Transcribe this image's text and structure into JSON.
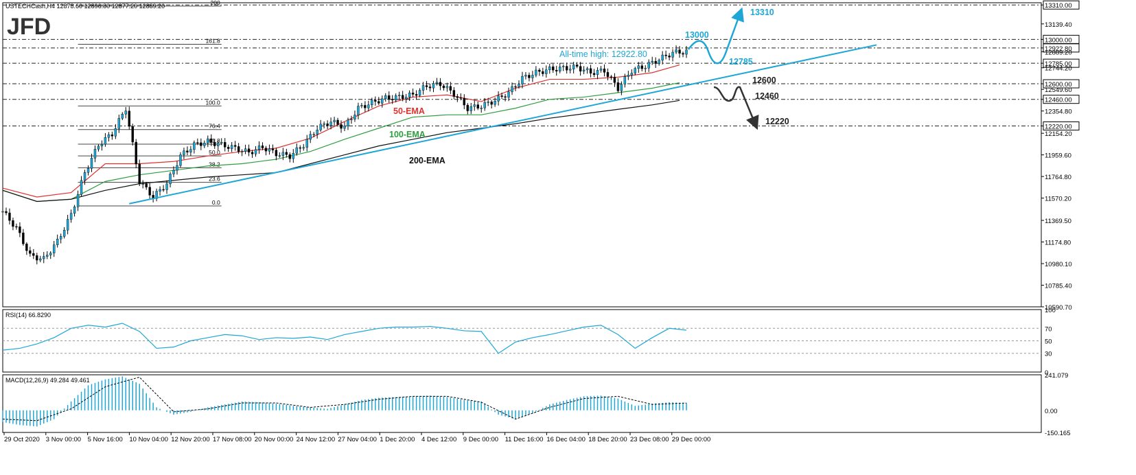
{
  "header": {
    "symbol_line": "USTECHCash,H4  12878.60 12896.80 12877.20 12889.20",
    "logo": "JFD"
  },
  "colors": {
    "accent": "#1ea7d6",
    "ema50": "#e0312f",
    "ema100": "#2e9e3e",
    "ema200": "#111111",
    "candles": "#1ea7d6",
    "bear_scenario": "#333333"
  },
  "chart_data": [
    {
      "type": "line",
      "title": "",
      "xlabel": "",
      "ylabel": "",
      "ylim": [
        10590.7,
        13330
      ],
      "grid": false,
      "x_tick_labels": [
        "29 Oct 2020",
        "3 Nov 00:00",
        "5 Nov 16:00",
        "10 Nov 04:00",
        "12 Nov 20:00",
        "17 Nov 08:00",
        "20 Nov 00:00",
        "24 Nov 12:00",
        "27 Nov 04:00",
        "1 Dec 20:00",
        "4 Dec 12:00",
        "9 Dec 00:00",
        "11 Dec 16:00",
        "16 Dec 04:00",
        "18 Dec 20:00",
        "23 Dec 08:00",
        "29 Dec 00:00"
      ],
      "y_tick_labels": [
        "13310.00",
        "13139.40",
        "13000.00",
        "12922.80",
        "12889.20",
        "12785.00",
        "12744.20",
        "12600.00",
        "12549.60",
        "12460.00",
        "12354.80",
        "12220.00",
        "12154.20",
        "11959.60",
        "11764.80",
        "11570.20",
        "11369.50",
        "11174.80",
        "10980.10",
        "10785.40",
        "10590.70"
      ],
      "horizontal_levels": [
        13310,
        13000,
        12922.8,
        12785,
        12600,
        12460,
        12220
      ],
      "series": [
        {
          "name": "",
          "x": [
            0,
            4,
            8,
            12,
            16,
            20,
            24,
            28,
            32,
            36,
            40,
            44,
            48,
            52,
            56,
            60,
            64,
            68,
            72,
            76,
            80,
            84,
            88,
            92,
            96,
            100,
            104,
            108,
            112,
            116,
            120,
            124,
            128,
            132,
            136,
            140,
            144,
            148,
            152,
            156,
            160,
            164,
            168,
            172,
            176,
            180,
            184,
            188,
            192,
            196,
            200
          ],
          "values": [
            11450,
            11300,
            11050,
            11020,
            11180,
            11420,
            11800,
            12050,
            12150,
            12380,
            11720,
            11580,
            11700,
            11950,
            12050,
            12080,
            12050,
            12020,
            11980,
            12030,
            11970,
            11950,
            12050,
            12200,
            12260,
            12210,
            12380,
            12430,
            12470,
            12480,
            12500,
            12580,
            12600,
            12510,
            12380,
            12400,
            12450,
            12520,
            12650,
            12700,
            12730,
            12740,
            12750,
            12700,
            12720,
            12560,
            12720,
            12760,
            12820,
            12880,
            12889.2
          ]
        },
        {
          "name": "50-EMA",
          "x": [
            0,
            10,
            20,
            30,
            40,
            50,
            60,
            70,
            80,
            90,
            100,
            110,
            120,
            130,
            140,
            150,
            160,
            170,
            180,
            190,
            198
          ],
          "values": [
            11660,
            11580,
            11620,
            11880,
            11880,
            11900,
            11950,
            11990,
            12020,
            12110,
            12260,
            12400,
            12480,
            12500,
            12440,
            12560,
            12640,
            12640,
            12660,
            12700,
            12770
          ]
        },
        {
          "name": "100-EMA",
          "x": [
            0,
            10,
            20,
            30,
            40,
            50,
            60,
            70,
            80,
            90,
            100,
            110,
            120,
            130,
            140,
            150,
            160,
            170,
            180,
            190,
            198
          ],
          "values": [
            11640,
            11540,
            11560,
            11720,
            11780,
            11820,
            11860,
            11880,
            11920,
            11990,
            12100,
            12200,
            12300,
            12320,
            12320,
            12380,
            12460,
            12480,
            12520,
            12560,
            12610
          ]
        },
        {
          "name": "200-EMA",
          "x": [
            0,
            10,
            20,
            30,
            40,
            50,
            60,
            70,
            80,
            90,
            100,
            110,
            120,
            130,
            140,
            150,
            160,
            170,
            180,
            190,
            198
          ],
          "values": [
            11640,
            11540,
            11560,
            11640,
            11700,
            11730,
            11760,
            11780,
            11800,
            11880,
            11960,
            12040,
            12100,
            12160,
            12200,
            12240,
            12290,
            12330,
            12370,
            12410,
            12450
          ]
        }
      ],
      "fibonacci": {
        "swing_high": 12400,
        "swing_low": 11500,
        "levels": [
          "0.0",
          "23.6",
          "38.2",
          "50.0",
          "61.8",
          "76.4",
          "100.0",
          "161.8",
          "200"
        ]
      },
      "annotations": [
        "All-time high: 12922.80",
        "13310",
        "13000",
        "12785",
        "12600",
        "12460",
        "12220",
        "50-EMA",
        "100-EMA",
        "200-EMA"
      ]
    },
    {
      "type": "line",
      "title": "RSI(14) 66.8290",
      "ylim": [
        0,
        100
      ],
      "y_tick_labels": [
        "100",
        "70",
        "50",
        "30",
        "0"
      ],
      "reference_levels": [
        70,
        50,
        30
      ],
      "series": [
        {
          "name": "RSI(14)",
          "x": [
            0,
            5,
            10,
            15,
            20,
            25,
            30,
            35,
            40,
            45,
            50,
            55,
            60,
            65,
            70,
            75,
            80,
            85,
            90,
            95,
            100,
            105,
            110,
            115,
            120,
            125,
            130,
            135,
            140,
            145,
            150,
            155,
            160,
            165,
            170,
            175,
            180,
            185,
            190,
            195,
            200
          ],
          "values": [
            35,
            38,
            45,
            55,
            70,
            75,
            72,
            78,
            65,
            38,
            40,
            50,
            55,
            60,
            58,
            52,
            55,
            54,
            56,
            52,
            60,
            65,
            70,
            72,
            72,
            73,
            70,
            66,
            65,
            30,
            48,
            55,
            60,
            66,
            72,
            75,
            60,
            38,
            55,
            70,
            67
          ]
        }
      ]
    },
    {
      "type": "bar",
      "title": "MACD(12,26,9) 49.284 49.461",
      "ylim": [
        -150.165,
        241.079
      ],
      "y_tick_labels": [
        "241.079",
        "0.00",
        "-150.165"
      ],
      "series": [
        {
          "name": "MACD(12,26,9)",
          "x": [
            0,
            5,
            10,
            15,
            20,
            25,
            30,
            35,
            40,
            45,
            50,
            55,
            60,
            65,
            70,
            75,
            80,
            85,
            90,
            95,
            100,
            105,
            110,
            115,
            120,
            125,
            130,
            135,
            140,
            145,
            150,
            155,
            160,
            165,
            170,
            175,
            180,
            185,
            190,
            195,
            200
          ],
          "values": [
            -80,
            -100,
            -110,
            -60,
            60,
            170,
            210,
            230,
            180,
            20,
            -30,
            -10,
            20,
            40,
            60,
            55,
            45,
            30,
            20,
            10,
            40,
            70,
            85,
            90,
            95,
            100,
            90,
            70,
            60,
            -30,
            -60,
            -20,
            40,
            70,
            95,
            100,
            80,
            30,
            45,
            55,
            49.284
          ]
        },
        {
          "name": "",
          "x": [
            0,
            10,
            20,
            30,
            40,
            50,
            60,
            70,
            80,
            90,
            100,
            110,
            120,
            130,
            140,
            150,
            160,
            170,
            180,
            190,
            200
          ],
          "values": [
            -60,
            -70,
            10,
            160,
            225,
            -10,
            10,
            50,
            50,
            20,
            40,
            75,
            95,
            95,
            55,
            -60,
            20,
            80,
            95,
            40,
            49.461
          ]
        }
      ]
    }
  ]
}
